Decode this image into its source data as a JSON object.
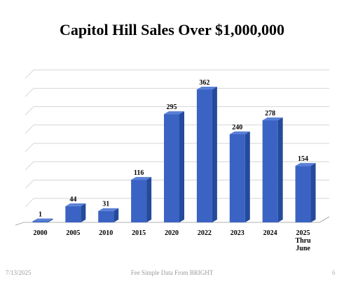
{
  "chart_data": {
    "type": "bar",
    "title": "Capitol Hill Sales Over $1,000,000",
    "categories": [
      "2000",
      "2005",
      "2010",
      "2015",
      "2020",
      "2022",
      "2023",
      "2024",
      "2025 Thru June"
    ],
    "values": [
      1,
      44,
      31,
      116,
      295,
      362,
      240,
      278,
      154
    ],
    "ylim": [
      0,
      400
    ],
    "grid": true,
    "bar_color": "#3b63c4"
  },
  "footer": {
    "date": "7/13/2025",
    "source": "Fee Simple Data From BRIGHT",
    "page": "6"
  }
}
